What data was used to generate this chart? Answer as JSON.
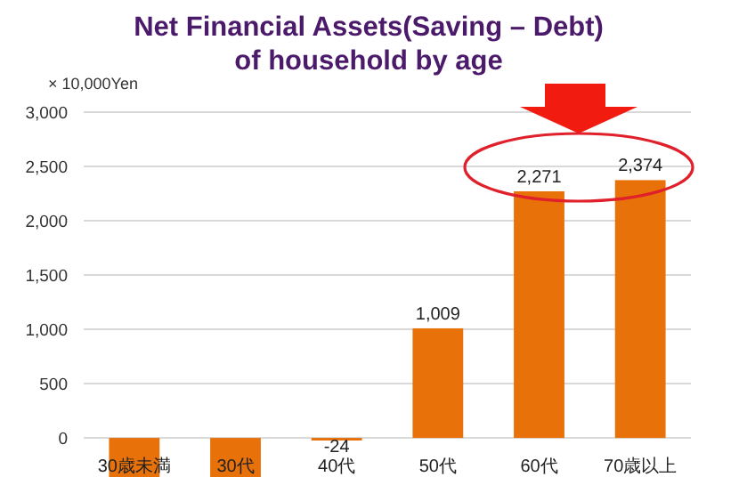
{
  "chart_data": {
    "type": "bar",
    "title": "Net Financial Assets(Saving – Debt)\nof household by age",
    "ylabel": "× 10,000Yen",
    "categories": [
      "30歳未満",
      "30代",
      "40代",
      "50代",
      "60代",
      "70歳以上"
    ],
    "values": [
      -360,
      -360,
      -24,
      1009,
      2271,
      2374
    ],
    "value_labels": [
      null,
      null,
      "-24",
      "1,009",
      "2,271",
      "2,374"
    ],
    "color": "#e8710a",
    "ylim": [
      -360,
      3000
    ],
    "yticks": [
      {
        "value": 0,
        "label": "0"
      },
      {
        "value": 500,
        "label": "500"
      },
      {
        "value": 1000,
        "label": "1,000"
      },
      {
        "value": 1500,
        "label": "1,500"
      },
      {
        "value": 2000,
        "label": "2,000"
      },
      {
        "value": 2500,
        "label": "2,500"
      },
      {
        "value": 3000,
        "label": "3,000"
      }
    ],
    "grid": "y"
  }
}
